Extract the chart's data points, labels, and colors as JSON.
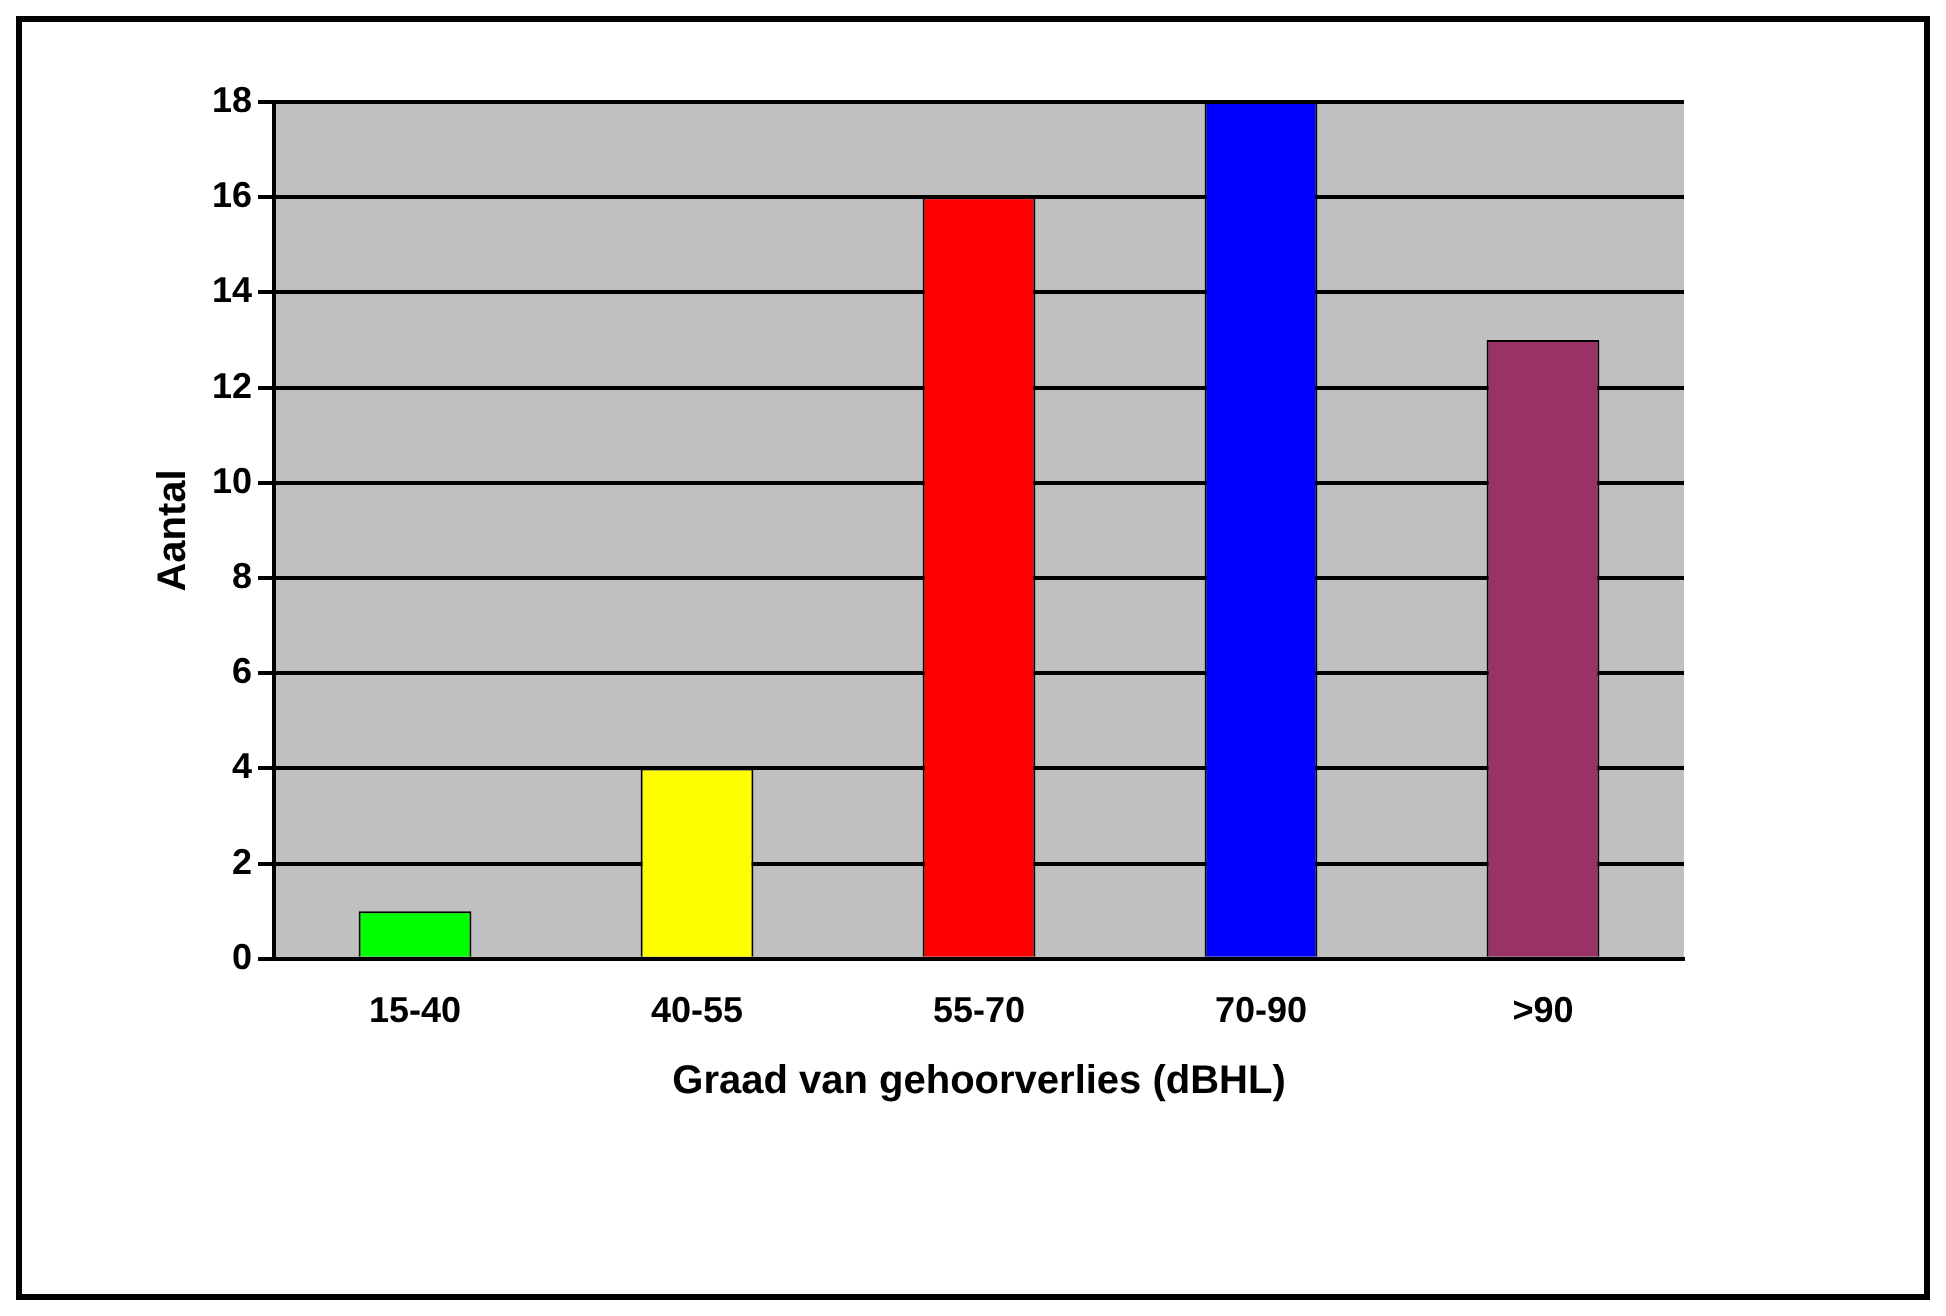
{
  "chart_data": {
    "type": "bar",
    "xlabel": "Graad van gehoorverlies (dBHL)",
    "ylabel": "Aantal",
    "categories": [
      "15-40",
      "40-55",
      "55-70",
      "70-90",
      ">90"
    ],
    "values": [
      1,
      4,
      16,
      18,
      13
    ],
    "colors": [
      "#00ff00",
      "#ffff00",
      "#ff0000",
      "#0000ff",
      "#993366"
    ],
    "ylim": [
      0,
      18
    ],
    "yticks": [
      0,
      2,
      4,
      6,
      8,
      10,
      12,
      14,
      16,
      18
    ],
    "grid": "y",
    "legend": false
  }
}
